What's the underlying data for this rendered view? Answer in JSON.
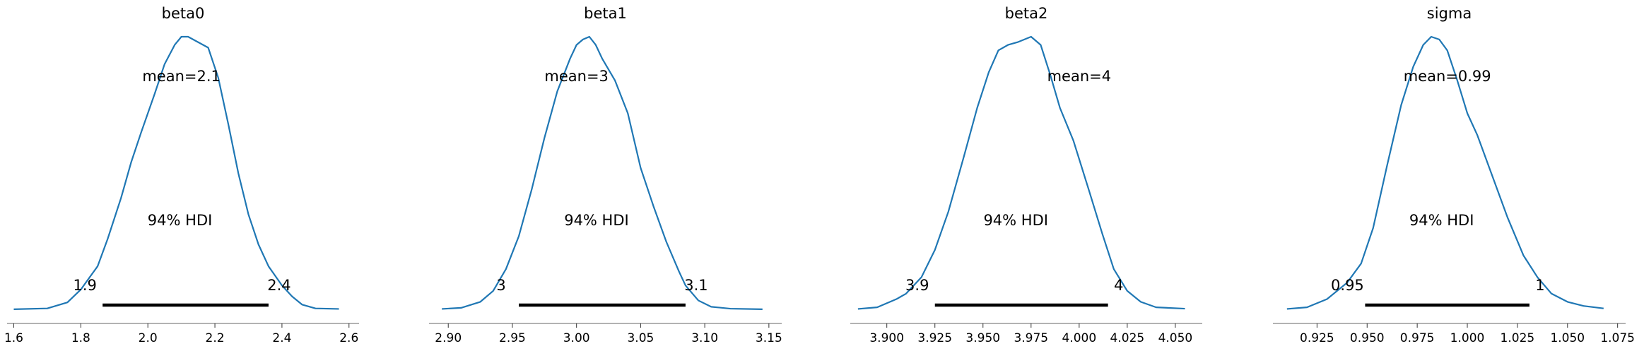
{
  "chart_data": [
    {
      "type": "line",
      "title": "beta0",
      "mean": 2.1,
      "mean_label": "mean=2.1",
      "hdi_label": "94% HDI",
      "hdi": [
        1.9,
        2.4
      ],
      "hdi_values": [
        1.865,
        2.36
      ],
      "hdi_labels": [
        "1.9",
        "2.4"
      ],
      "xlim": [
        1.58,
        2.63
      ],
      "xticks": [
        1.6,
        1.8,
        2.0,
        2.2,
        2.4,
        2.6
      ],
      "xtick_labels": [
        "1.6",
        "1.8",
        "2.0",
        "2.2",
        "2.4",
        "2.6"
      ],
      "curve": {
        "x": [
          1.6,
          1.7,
          1.76,
          1.8,
          1.85,
          1.88,
          1.92,
          1.95,
          1.98,
          2.02,
          2.05,
          2.08,
          2.1,
          2.12,
          2.15,
          2.18,
          2.21,
          2.24,
          2.27,
          2.3,
          2.33,
          2.36,
          2.4,
          2.43,
          2.46,
          2.5,
          2.57
        ],
        "y": [
          0.003,
          0.006,
          0.028,
          0.075,
          0.16,
          0.26,
          0.41,
          0.54,
          0.65,
          0.79,
          0.9,
          0.97,
          1.0,
          1.0,
          0.98,
          0.96,
          0.85,
          0.68,
          0.5,
          0.35,
          0.24,
          0.16,
          0.09,
          0.05,
          0.02,
          0.006,
          0.004
        ]
      }
    },
    {
      "type": "line",
      "title": "beta1",
      "mean": 3,
      "mean_label": "mean=3",
      "hdi_label": "94% HDI",
      "hdi": [
        3,
        3.1
      ],
      "hdi_values": [
        2.955,
        3.085
      ],
      "hdi_labels": [
        "3",
        "3.1"
      ],
      "xlim": [
        2.885,
        3.16
      ],
      "xticks": [
        2.9,
        2.95,
        3.0,
        3.05,
        3.1,
        3.15
      ],
      "xtick_labels": [
        "2.90",
        "2.95",
        "3.00",
        "3.05",
        "3.10",
        "3.15"
      ],
      "curve": {
        "x": [
          2.895,
          2.91,
          2.925,
          2.935,
          2.945,
          2.955,
          2.965,
          2.975,
          2.985,
          2.995,
          3.0,
          3.005,
          3.01,
          3.015,
          3.02,
          3.03,
          3.04,
          3.05,
          3.06,
          3.07,
          3.08,
          3.085,
          3.095,
          3.105,
          3.12,
          3.145
        ],
        "y": [
          0.004,
          0.008,
          0.03,
          0.07,
          0.15,
          0.27,
          0.44,
          0.63,
          0.8,
          0.92,
          0.97,
          0.99,
          1.0,
          0.97,
          0.92,
          0.84,
          0.72,
          0.52,
          0.38,
          0.25,
          0.14,
          0.09,
          0.035,
          0.012,
          0.005,
          0.003
        ]
      }
    },
    {
      "type": "line",
      "title": "beta2",
      "mean": 4,
      "mean_label": "mean=4",
      "hdi_label": "94% HDI",
      "hdi": [
        3.9,
        4
      ],
      "hdi_values": [
        3.925,
        4.015
      ],
      "hdi_labels": [
        "3.9",
        "4"
      ],
      "xlim": [
        3.881,
        4.064
      ],
      "xticks": [
        3.9,
        3.925,
        3.95,
        3.975,
        4.0,
        4.025,
        4.05
      ],
      "xtick_labels": [
        "3.900",
        "3.925",
        "3.950",
        "3.975",
        "4.000",
        "4.025",
        "4.050"
      ],
      "curve": {
        "x": [
          3.885,
          3.895,
          3.905,
          3.91,
          3.918,
          3.925,
          3.932,
          3.94,
          3.947,
          3.953,
          3.958,
          3.963,
          3.968,
          3.975,
          3.98,
          3.985,
          3.99,
          3.997,
          4.005,
          4.012,
          4.018,
          4.025,
          4.032,
          4.04,
          4.055
        ],
        "y": [
          0.004,
          0.01,
          0.04,
          0.06,
          0.12,
          0.22,
          0.36,
          0.56,
          0.74,
          0.87,
          0.95,
          0.97,
          0.98,
          1.0,
          0.97,
          0.86,
          0.74,
          0.62,
          0.44,
          0.28,
          0.15,
          0.07,
          0.03,
          0.01,
          0.005
        ]
      }
    },
    {
      "type": "line",
      "title": "sigma",
      "mean": 0.99,
      "mean_label": "mean=0.99",
      "hdi_label": "94% HDI",
      "hdi": [
        0.95,
        1
      ],
      "hdi_values": [
        0.949,
        1.031
      ],
      "hdi_labels": [
        "0.95",
        "1"
      ],
      "xlim": [
        0.903,
        1.079
      ],
      "xticks": [
        0.925,
        0.95,
        0.975,
        1.0,
        1.025,
        1.05,
        1.075
      ],
      "xtick_labels": [
        "0.925",
        "0.950",
        "0.975",
        "1.000",
        "1.025",
        "1.050",
        "1.075"
      ],
      "curve": {
        "x": [
          0.91,
          0.92,
          0.93,
          0.94,
          0.947,
          0.953,
          0.96,
          0.967,
          0.973,
          0.978,
          0.982,
          0.986,
          0.99,
          0.995,
          1.0,
          1.005,
          1.012,
          1.02,
          1.028,
          1.035,
          1.042,
          1.05,
          1.058,
          1.068
        ],
        "y": [
          0.004,
          0.01,
          0.04,
          0.1,
          0.17,
          0.3,
          0.53,
          0.75,
          0.89,
          0.97,
          1.0,
          0.99,
          0.95,
          0.84,
          0.72,
          0.64,
          0.5,
          0.34,
          0.2,
          0.12,
          0.06,
          0.03,
          0.015,
          0.006
        ]
      }
    }
  ],
  "colors": {
    "line": "#1f77b4",
    "bar": "#000000"
  }
}
